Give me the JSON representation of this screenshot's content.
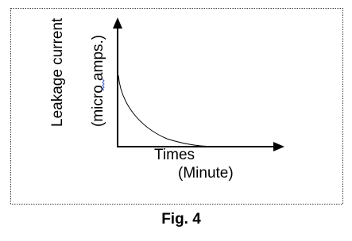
{
  "y_axis_label": "Leakage current",
  "y_axis_unit": "(micro amps.)",
  "x_axis_label": "Times",
  "x_axis_unit": "(Minute)",
  "caption": "Fig. 4"
}
